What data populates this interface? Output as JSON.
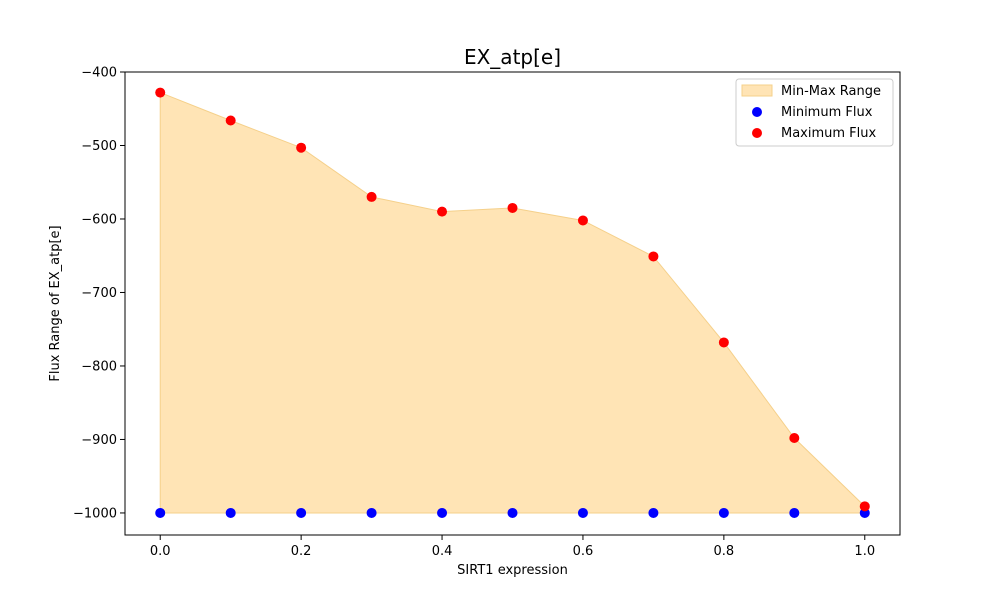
{
  "chart_data": {
    "type": "area",
    "title": "EX_atp[e]",
    "xlabel": "SIRT1 expression",
    "ylabel": "Flux Range of EX_atp[e]",
    "xlim": [
      -0.05,
      1.05
    ],
    "ylim": [
      -1030,
      -400
    ],
    "x_ticks": [
      0.0,
      0.2,
      0.4,
      0.6,
      0.8,
      1.0
    ],
    "x_tick_labels": [
      "0.0",
      "0.2",
      "0.4",
      "0.6",
      "0.8",
      "1.0"
    ],
    "y_ticks": [
      -400,
      -500,
      -600,
      -700,
      -800,
      -900,
      -1000
    ],
    "y_tick_labels": [
      "−400",
      "−500",
      "−600",
      "−700",
      "−800",
      "−900",
      "−1000"
    ],
    "x": [
      0.0,
      0.1,
      0.2,
      0.3,
      0.4,
      0.5,
      0.6,
      0.7,
      0.8,
      0.9,
      1.0
    ],
    "series": [
      {
        "name": "Min-Max Range",
        "kind": "fill",
        "color": "#ffe4b5",
        "edge_color": "#f5d08a"
      },
      {
        "name": "Minimum Flux",
        "kind": "scatter",
        "color": "#0000ff",
        "values": [
          -1000,
          -1000,
          -1000,
          -1000,
          -1000,
          -1000,
          -1000,
          -1000,
          -1000,
          -1000,
          -1000
        ]
      },
      {
        "name": "Maximum Flux",
        "kind": "scatter",
        "color": "#ff0000",
        "values": [
          -428,
          -466,
          -503,
          -570,
          -590,
          -585,
          -602,
          -651,
          -768,
          -898,
          -991
        ]
      }
    ],
    "legend_position": "top-right",
    "grid": false
  }
}
